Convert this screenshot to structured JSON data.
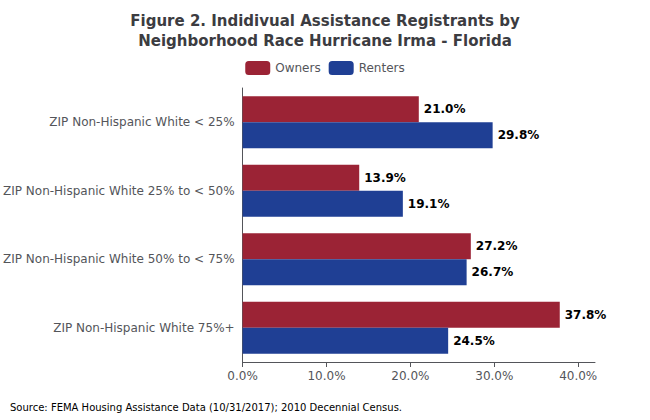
{
  "chart_data": {
    "type": "bar",
    "orientation": "horizontal",
    "title": "Figure 2. Indidivual Assistance Registrants by\nNeighborhood Race Hurricane Irma - Florida",
    "categories": [
      "ZIP Non-Hispanic White < 25%",
      "ZIP Non-Hispanic White 25% to < 50%",
      "ZIP Non-Hispanic White 50% to < 75%",
      "ZIP Non-Hispanic White 75%+"
    ],
    "series": [
      {
        "name": "Owners",
        "color": "#9B2335",
        "values": [
          21.0,
          13.9,
          27.2,
          37.8
        ],
        "value_labels": [
          "21.0%",
          "13.9%",
          "27.2%",
          "37.8%"
        ]
      },
      {
        "name": "Renters",
        "color": "#1F3F94",
        "values": [
          29.8,
          19.1,
          26.7,
          24.5
        ],
        "value_labels": [
          "29.8%",
          "19.1%",
          "26.7%",
          "24.5%"
        ]
      }
    ],
    "xlim": [
      0,
      42
    ],
    "xticks": [
      {
        "value": 0,
        "label": "0.0%"
      },
      {
        "value": 10,
        "label": "10.0%"
      },
      {
        "value": 20,
        "label": "20.0%"
      },
      {
        "value": 30,
        "label": "30.0%"
      },
      {
        "value": 40,
        "label": "40.0%"
      }
    ],
    "data_labels": true,
    "legend": "top",
    "grid": false,
    "annotations": [
      "Source: FEMA Housing Assistance Data (10/31/2017); 2010 Decennial Census."
    ]
  }
}
